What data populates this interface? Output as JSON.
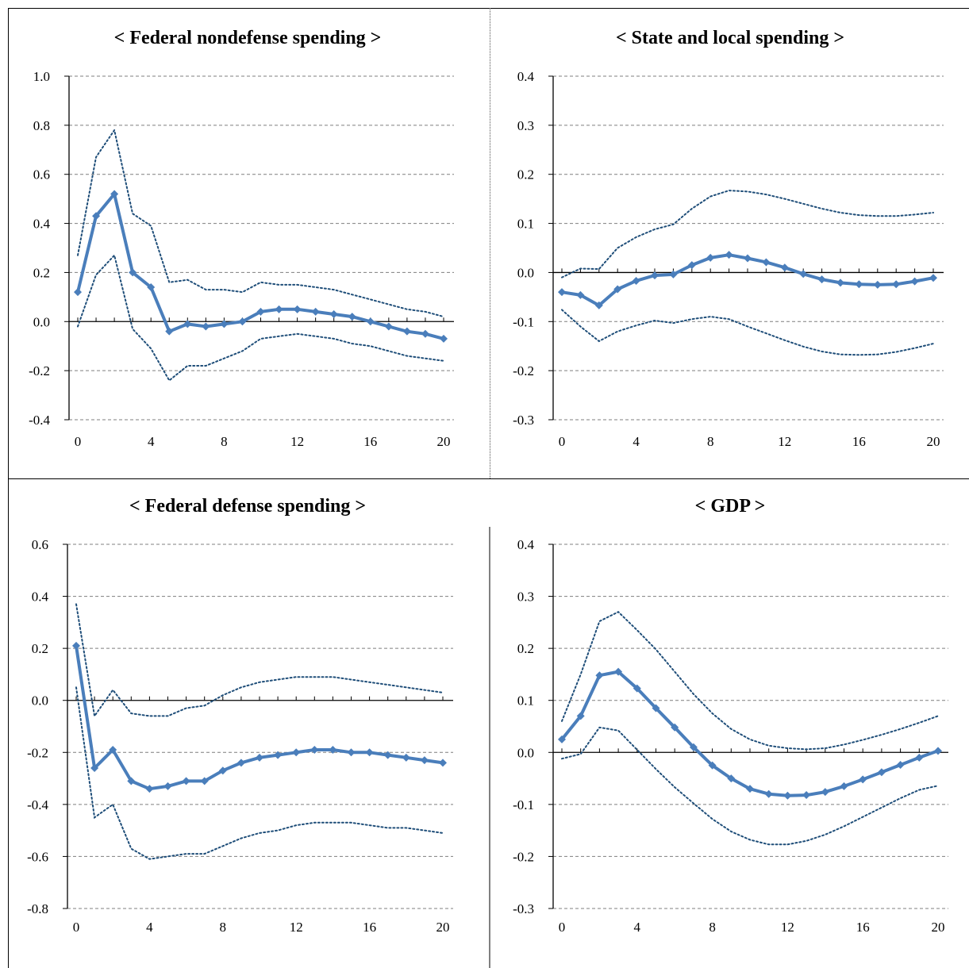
{
  "style": {
    "series_color": "#4a7ebb",
    "band_color": "#1f4e79",
    "grid_color": "#7f7f7f",
    "axis_color": "#000000"
  },
  "chart_data": [
    {
      "type": "line",
      "title": "< Federal nondefense spending >",
      "xlabel": "",
      "ylabel": "",
      "x": [
        0,
        1,
        2,
        3,
        4,
        5,
        6,
        7,
        8,
        9,
        10,
        11,
        12,
        13,
        14,
        15,
        16,
        17,
        18,
        19,
        20
      ],
      "xticks": [
        0,
        4,
        8,
        12,
        16,
        20
      ],
      "xlim": [
        0,
        20
      ],
      "ylim": [
        -0.4,
        1.0
      ],
      "yticks": [
        -0.4,
        -0.2,
        0.0,
        0.2,
        0.4,
        0.6,
        0.8,
        1.0
      ],
      "ytick_labels": [
        "-0.4",
        "-0.2",
        "0.0",
        "0.2",
        "0.4",
        "0.6",
        "0.8",
        "1.0"
      ],
      "grid": true,
      "series": [
        {
          "role": "estimate",
          "values": [
            0.12,
            0.43,
            0.52,
            0.2,
            0.14,
            -0.04,
            -0.01,
            -0.02,
            -0.01,
            0.0,
            0.04,
            0.05,
            0.05,
            0.04,
            0.03,
            0.02,
            0.0,
            -0.02,
            -0.04,
            -0.05,
            -0.07
          ]
        },
        {
          "role": "upper",
          "values": [
            0.27,
            0.67,
            0.78,
            0.44,
            0.39,
            0.16,
            0.17,
            0.13,
            0.13,
            0.12,
            0.16,
            0.15,
            0.15,
            0.14,
            0.13,
            0.11,
            0.09,
            0.07,
            0.05,
            0.04,
            0.02
          ]
        },
        {
          "role": "lower",
          "values": [
            -0.02,
            0.19,
            0.27,
            -0.03,
            -0.11,
            -0.24,
            -0.18,
            -0.18,
            -0.15,
            -0.12,
            -0.07,
            -0.06,
            -0.05,
            -0.06,
            -0.07,
            -0.09,
            -0.1,
            -0.12,
            -0.14,
            -0.15,
            -0.16
          ]
        }
      ]
    },
    {
      "type": "line",
      "title": "< State and local spending >",
      "xlabel": "",
      "ylabel": "",
      "x": [
        0,
        1,
        2,
        3,
        4,
        5,
        6,
        7,
        8,
        9,
        10,
        11,
        12,
        13,
        14,
        15,
        16,
        17,
        18,
        19,
        20
      ],
      "xticks": [
        0,
        4,
        8,
        12,
        16,
        20
      ],
      "xlim": [
        0,
        20
      ],
      "ylim": [
        -0.3,
        0.4
      ],
      "yticks": [
        -0.3,
        -0.2,
        -0.1,
        0.0,
        0.1,
        0.2,
        0.3,
        0.4
      ],
      "ytick_labels": [
        "-0.3",
        "-0.2",
        "-0.1",
        "0.0",
        "0.1",
        "0.2",
        "0.3",
        "0.4"
      ],
      "grid": true,
      "series": [
        {
          "role": "estimate",
          "values": [
            -0.04,
            -0.046,
            -0.067,
            -0.034,
            -0.017,
            -0.006,
            -0.004,
            0.015,
            0.03,
            0.036,
            0.029,
            0.021,
            0.01,
            -0.003,
            -0.014,
            -0.021,
            -0.024,
            -0.025,
            -0.024,
            -0.018,
            -0.011
          ]
        },
        {
          "role": "upper",
          "values": [
            -0.01,
            0.008,
            0.007,
            0.05,
            0.072,
            0.088,
            0.098,
            0.13,
            0.155,
            0.167,
            0.165,
            0.159,
            0.15,
            0.14,
            0.13,
            0.122,
            0.117,
            0.115,
            0.115,
            0.118,
            0.122
          ]
        },
        {
          "role": "lower",
          "values": [
            -0.076,
            -0.11,
            -0.14,
            -0.12,
            -0.108,
            -0.098,
            -0.103,
            -0.095,
            -0.09,
            -0.095,
            -0.11,
            -0.124,
            -0.138,
            -0.151,
            -0.161,
            -0.167,
            -0.168,
            -0.167,
            -0.162,
            -0.154,
            -0.145
          ]
        }
      ]
    },
    {
      "type": "line",
      "title": "< Federal defense spending >",
      "xlabel": "",
      "ylabel": "",
      "x": [
        0,
        1,
        2,
        3,
        4,
        5,
        6,
        7,
        8,
        9,
        10,
        11,
        12,
        13,
        14,
        15,
        16,
        17,
        18,
        19,
        20
      ],
      "xticks": [
        0,
        4,
        8,
        12,
        16,
        20
      ],
      "xlim": [
        0,
        20
      ],
      "ylim": [
        -0.8,
        0.6
      ],
      "yticks": [
        -0.8,
        -0.6,
        -0.4,
        -0.2,
        0.0,
        0.2,
        0.4,
        0.6
      ],
      "ytick_labels": [
        "-0.8",
        "-0.6",
        "-0.4",
        "-0.2",
        "0.0",
        "0.2",
        "0.4",
        "0.6"
      ],
      "grid": true,
      "series": [
        {
          "role": "estimate",
          "values": [
            0.21,
            -0.26,
            -0.19,
            -0.31,
            -0.34,
            -0.33,
            -0.31,
            -0.31,
            -0.27,
            -0.24,
            -0.22,
            -0.21,
            -0.2,
            -0.19,
            -0.19,
            -0.2,
            -0.2,
            -0.21,
            -0.22,
            -0.23,
            -0.24
          ]
        },
        {
          "role": "upper",
          "values": [
            0.37,
            -0.06,
            0.04,
            -0.05,
            -0.06,
            -0.06,
            -0.03,
            -0.02,
            0.02,
            0.05,
            0.07,
            0.08,
            0.09,
            0.09,
            0.09,
            0.08,
            0.07,
            0.06,
            0.05,
            0.04,
            0.03
          ]
        },
        {
          "role": "lower",
          "values": [
            0.05,
            -0.45,
            -0.4,
            -0.57,
            -0.61,
            -0.6,
            -0.59,
            -0.59,
            -0.56,
            -0.53,
            -0.51,
            -0.5,
            -0.48,
            -0.47,
            -0.47,
            -0.47,
            -0.48,
            -0.49,
            -0.49,
            -0.5,
            -0.51
          ]
        }
      ]
    },
    {
      "type": "line",
      "title": "< GDP >",
      "xlabel": "",
      "ylabel": "",
      "x": [
        0,
        1,
        2,
        3,
        4,
        5,
        6,
        7,
        8,
        9,
        10,
        11,
        12,
        13,
        14,
        15,
        16,
        17,
        18,
        19,
        20
      ],
      "xticks": [
        0,
        4,
        8,
        12,
        16,
        20
      ],
      "xlim": [
        0,
        20
      ],
      "ylim": [
        -0.3,
        0.4
      ],
      "yticks": [
        -0.3,
        -0.2,
        -0.1,
        0.0,
        0.1,
        0.2,
        0.3,
        0.4
      ],
      "ytick_labels": [
        "-0.3",
        "-0.2",
        "-0.1",
        "0.0",
        "0.1",
        "0.2",
        "0.3",
        "0.4"
      ],
      "grid": true,
      "series": [
        {
          "role": "estimate",
          "values": [
            0.025,
            0.07,
            0.148,
            0.155,
            0.123,
            0.085,
            0.048,
            0.01,
            -0.025,
            -0.05,
            -0.07,
            -0.08,
            -0.083,
            -0.082,
            -0.076,
            -0.065,
            -0.052,
            -0.038,
            -0.024,
            -0.01,
            0.003
          ]
        },
        {
          "role": "upper",
          "values": [
            0.06,
            0.15,
            0.252,
            0.27,
            0.235,
            0.198,
            0.155,
            0.112,
            0.075,
            0.045,
            0.025,
            0.013,
            0.008,
            0.006,
            0.008,
            0.015,
            0.024,
            0.034,
            0.045,
            0.057,
            0.07
          ]
        },
        {
          "role": "lower",
          "values": [
            -0.012,
            -0.003,
            0.048,
            0.042,
            0.005,
            -0.032,
            -0.067,
            -0.098,
            -0.128,
            -0.152,
            -0.168,
            -0.177,
            -0.177,
            -0.17,
            -0.158,
            -0.142,
            -0.124,
            -0.106,
            -0.088,
            -0.072,
            -0.064
          ]
        }
      ]
    }
  ]
}
